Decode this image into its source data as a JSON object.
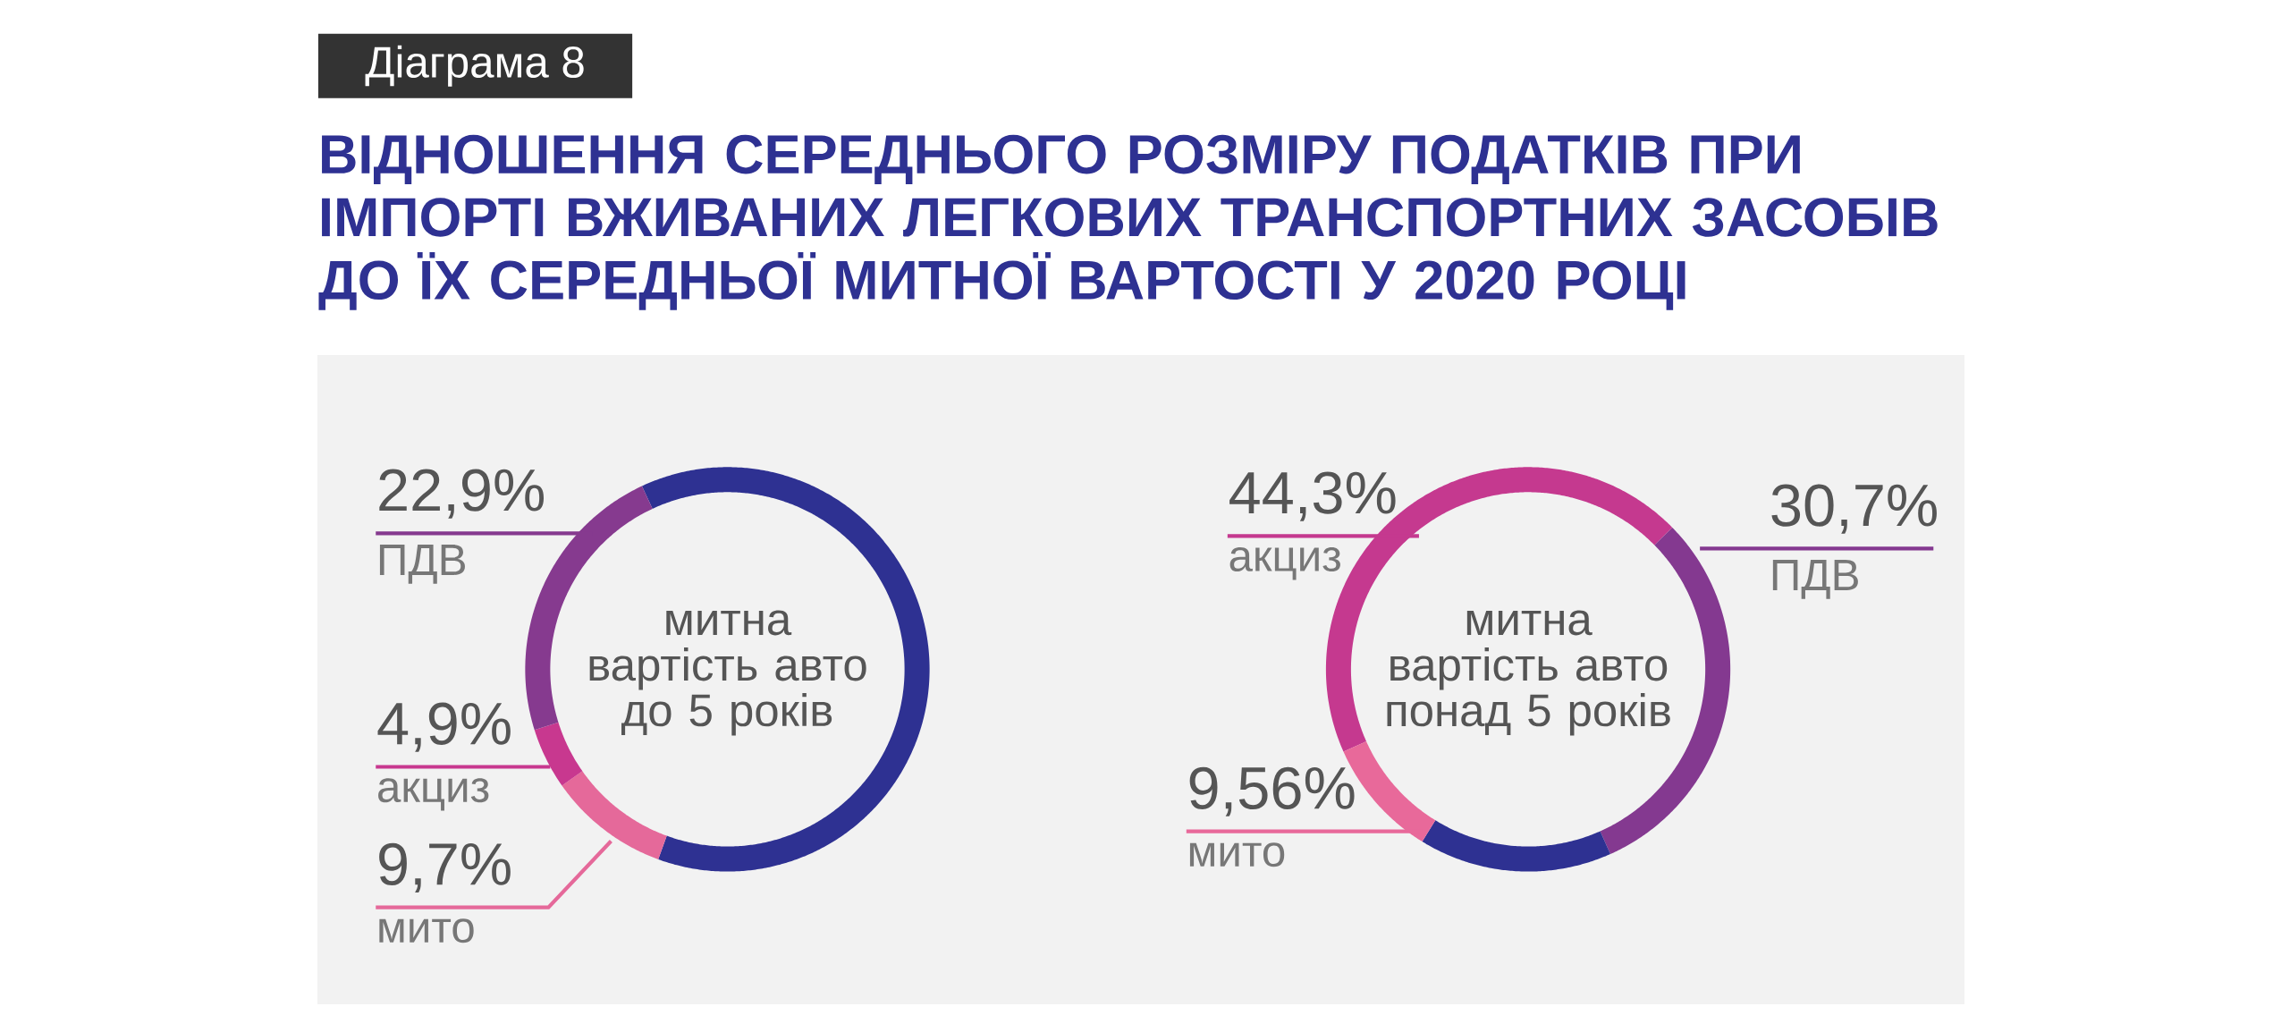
{
  "chart_data": [
    {
      "type": "donut",
      "title": "ВІДНОШЕННЯ СЕРЕДНЬОГО РОЗМІРУ ПОДАТКІВ ПРИ ІМПОРТІ ВЖИВАНИХ ЛЕГКОВИХ ТРАНСПОРТНИХ ЗАСОБІВ ДО ЇХ СЕРЕДНЬОЇ МИТНОЇ ВАРТОСТІ У 2020 РОЦІ",
      "annotations": [
        "Діаграма 8"
      ],
      "categories": [
        "митна вартість авто до 5 років",
        "мито",
        "акциз",
        "ПДВ"
      ],
      "values": [
        62.5,
        9.7,
        4.9,
        22.9
      ],
      "value_labels": [
        null,
        "9,7%",
        "4,9%",
        "22,9%"
      ],
      "colors": [
        "#2e3192",
        "#e5699a",
        "#c8388f",
        "#863a8f"
      ]
    },
    {
      "type": "donut",
      "categories": [
        "акциз",
        "ПДВ",
        "митна вартість авто понад 5 років",
        "мито"
      ],
      "values": [
        44.3,
        30.7,
        15.44,
        9.56
      ],
      "value_labels": [
        "44,3%",
        "30,7%",
        null,
        "9,56%"
      ],
      "colors": [
        "#c5398f",
        "#843990",
        "#2e3192",
        "#e8699a"
      ]
    }
  ]
}
